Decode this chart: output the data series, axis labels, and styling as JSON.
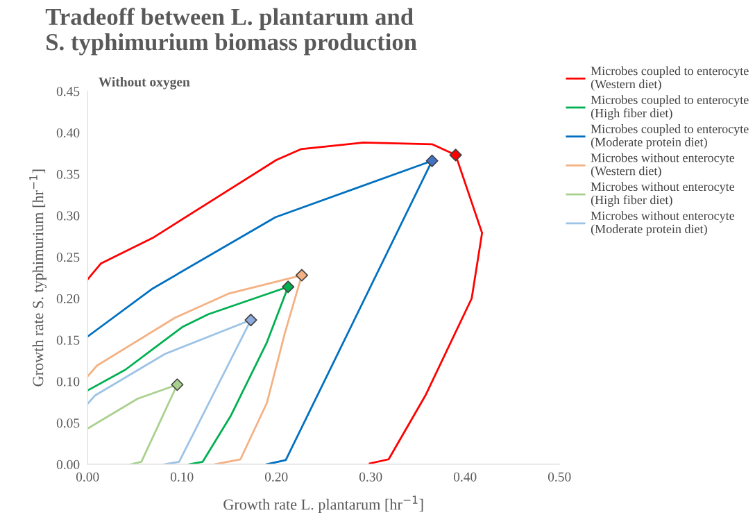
{
  "chart_data": {
    "type": "line",
    "title": "Tradeoff between L. plantarum and\nS. typhimurium biomass production",
    "subtitle": "Without oxygen",
    "xlabel": "Growth rate L. plantarum [hr$^{−1}$]",
    "ylabel": "Growth rate S. typhimurium [hr$^{−1}$]",
    "xlim": [
      0,
      0.5
    ],
    "xticks": [
      {
        "value": 0,
        "label": "0.00"
      },
      {
        "value": 0.1,
        "label": "0.10"
      },
      {
        "value": 0.2,
        "label": "0.20"
      },
      {
        "value": 0.3,
        "label": "0.30"
      },
      {
        "value": 0.4,
        "label": "0.40"
      },
      {
        "value": 0.5,
        "label": "0.50"
      }
    ],
    "ylim": [
      0,
      0.45
    ],
    "yticks": [
      {
        "value": 0,
        "label": "0.00"
      },
      {
        "value": 0.05,
        "label": "0.05"
      },
      {
        "value": 0.1,
        "label": "0.10"
      },
      {
        "value": 0.15,
        "label": "0.15"
      },
      {
        "value": 0.2,
        "label": "0.20"
      },
      {
        "value": 0.25,
        "label": "0.25"
      },
      {
        "value": 0.3,
        "label": "0.30"
      },
      {
        "value": 0.35,
        "label": "0.35"
      },
      {
        "value": 0.4,
        "label": "0.40"
      },
      {
        "value": 0.45,
        "label": "0.45"
      }
    ],
    "grid": false,
    "legend": "right",
    "series": [
      {
        "name": "Microbes coupled to enterocyte\n(Western diet)",
        "color": "#ff0000",
        "x": [
          0,
          0.014,
          0.069,
          0.2,
          0.226,
          0.292,
          0.365,
          0.39,
          0.418,
          0.407,
          0.358,
          0.319,
          0.299
        ],
        "values": [
          0.223,
          0.242,
          0.273,
          0.367,
          0.38,
          0.388,
          0.386,
          0.373,
          0.279,
          0.2,
          0.083,
          0.006,
          0.001
        ]
      },
      {
        "name": "Microbes coupled to enterocyte\n(High fiber diet)",
        "color": "#00b050",
        "x": [
          0,
          0.04,
          0.101,
          0.128,
          0.2125,
          0.19,
          0.152,
          0.122,
          0.108
        ],
        "values": [
          0.089,
          0.114,
          0.166,
          0.181,
          0.214,
          0.147,
          0.059,
          0.003,
          0.0
        ]
      },
      {
        "name": "Microbes coupled to enterocyte\n(Moderate protein diet)",
        "color": "#0070c0",
        "x": [
          0,
          0.069,
          0.187,
          0.199,
          0.365,
          0.21,
          0.19
        ],
        "values": [
          0.154,
          0.212,
          0.29,
          0.298,
          0.366,
          0.005,
          0.0
        ]
      },
      {
        "name": "Microbes without enterocyte\n(Western diet)",
        "color": "#f4b183",
        "x": [
          0,
          0.01,
          0.093,
          0.15,
          0.227,
          0.209,
          0.19,
          0.162,
          0.135
        ],
        "values": [
          0.106,
          0.119,
          0.177,
          0.206,
          0.228,
          0.158,
          0.074,
          0.006,
          0.0
        ]
      },
      {
        "name": "Microbes without enterocyte\n(High fiber diet)",
        "color": "#a9d18e",
        "x": [
          0,
          0.053,
          0.095,
          0.057,
          0.046
        ],
        "values": [
          0.043,
          0.079,
          0.096,
          0.003,
          0.0
        ]
      },
      {
        "name": "Microbes without enterocyte\n(Moderate protein diet)",
        "color": "#9dc3e6",
        "x": [
          0,
          0.008,
          0.082,
          0.173,
          0.097,
          0.082
        ],
        "values": [
          0.073,
          0.083,
          0.133,
          0.174,
          0.003,
          0.0
        ]
      },
      {
        "type": "scatter",
        "marker": "diamond",
        "color": "#ff0000",
        "x": [
          0.39
        ],
        "values": [
          0.373
        ]
      },
      {
        "type": "scatter",
        "marker": "diamond",
        "color": "#00b050",
        "x": [
          0.2125
        ],
        "values": [
          0.214
        ]
      },
      {
        "type": "scatter",
        "marker": "diamond",
        "color": "#4472c4",
        "x": [
          0.365
        ],
        "values": [
          0.366
        ]
      },
      {
        "type": "scatter",
        "marker": "diamond",
        "color": "#f4b183",
        "x": [
          0.227
        ],
        "values": [
          0.228
        ]
      },
      {
        "type": "scatter",
        "marker": "diamond",
        "color": "#a9d18e",
        "x": [
          0.095
        ],
        "values": [
          0.096
        ]
      },
      {
        "type": "scatter",
        "marker": "diamond",
        "color": "#8faadc",
        "x": [
          0.173
        ],
        "values": [
          0.174
        ]
      }
    ]
  }
}
